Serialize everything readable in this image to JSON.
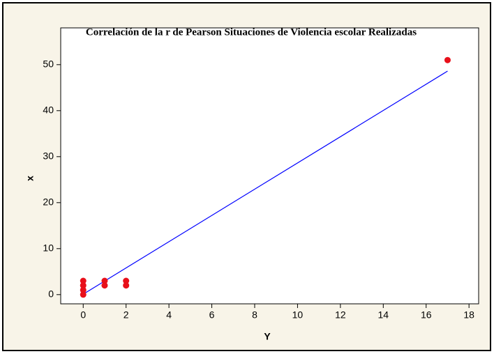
{
  "chart_data": {
    "type": "scatter",
    "title": "Correlación de la r de Pearson Situaciones de Violencia escolar Realizadas",
    "x_label": "Y",
    "y_label": "x",
    "points": {
      "x": [
        0,
        0,
        0,
        0,
        1,
        1,
        2,
        2,
        17
      ],
      "y": [
        0,
        1,
        2,
        3,
        2,
        3,
        2,
        3,
        51
      ],
      "color": "#e8101a"
    },
    "fit_line": {
      "x": [
        0,
        17
      ],
      "y": [
        0.1,
        48.6
      ],
      "color": "#0000ff"
    },
    "xlim": [
      -1.05,
      18.45
    ],
    "ylim": [
      -2,
      58
    ],
    "xticks": [
      0,
      2,
      4,
      6,
      8,
      10,
      12,
      14,
      16,
      18
    ],
    "yticks": [
      0,
      10,
      20,
      30,
      40,
      50
    ]
  }
}
